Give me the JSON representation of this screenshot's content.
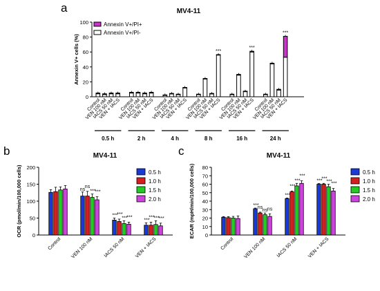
{
  "panels": {
    "a": {
      "letter": "a",
      "title": "MV4-11"
    },
    "b": {
      "letter": "b",
      "title": "MV4-11"
    },
    "c": {
      "letter": "c",
      "title": "MV4-11"
    }
  },
  "colors": {
    "magenta": "#cc33cc",
    "white": "#ffffff",
    "blue": "#1a3ad6",
    "red": "#d41f1f",
    "green": "#22cc22",
    "purple": "#cc44dd"
  },
  "chart_data": [
    {
      "id": "a",
      "type": "bar",
      "stacked": true,
      "title": "MV4-11",
      "ylabel": "Annexin V+ cells (%)",
      "ylim": [
        0,
        100
      ],
      "yticks": [
        0,
        20,
        40,
        60,
        80,
        100
      ],
      "legend_position": "top-left",
      "categories": [
        "Control",
        "VEN 100 nM",
        "IACS 50 nM",
        "VEN + IACS"
      ],
      "timepoints": [
        "0.5 h",
        "2 h",
        "4 h",
        "8 h",
        "16 h",
        "24 h"
      ],
      "series": [
        {
          "name": "Annexin V+/PI+",
          "color": "#cc33cc",
          "values": [
            [
              1,
              1,
              1,
              1
            ],
            [
              1,
              1,
              1,
              1
            ],
            [
              0.5,
              0.5,
              0.5,
              0.5
            ],
            [
              0.5,
              0.5,
              0.5,
              0.5
            ],
            [
              0.5,
              1,
              0.5,
              1
            ],
            [
              0.5,
              1,
              1,
              28
            ]
          ]
        },
        {
          "name": "Annexin V+/PI-",
          "color": "#ffffff",
          "values": [
            [
              4,
              3,
              4,
              4
            ],
            [
              5,
              5,
              4,
              5
            ],
            [
              2,
              4,
              3,
              12
            ],
            [
              3,
              24,
              4,
              56
            ],
            [
              3,
              29,
              7,
              60
            ],
            [
              3,
              44,
              9,
              53
            ]
          ]
        }
      ],
      "annotations": [
        [
          "8 h",
          3,
          "***"
        ],
        [
          "16 h",
          3,
          "***"
        ],
        [
          "24 h",
          3,
          "***"
        ]
      ]
    },
    {
      "id": "b",
      "type": "bar",
      "title": "MV4-11",
      "ylabel": "OCR (pmol/min/100,000 cells)",
      "ylim": [
        0,
        200
      ],
      "yticks": [
        0,
        50,
        100,
        150,
        200
      ],
      "legend_position": "top-right",
      "categories": [
        "Control",
        "VEN 100 nM",
        "IACS 50 nM",
        "VEN + IACS"
      ],
      "series": [
        {
          "name": "0.5 h",
          "color": "#1a3ad6",
          "values": [
            126,
            115,
            44,
            29
          ]
        },
        {
          "name": "1.0 h",
          "color": "#d41f1f",
          "values": [
            128,
            115,
            40,
            29
          ]
        },
        {
          "name": "1.5 h",
          "color": "#22cc22",
          "values": [
            133,
            111,
            34,
            31
          ]
        },
        {
          "name": "2.0 h",
          "color": "#cc44dd",
          "values": [
            136,
            104,
            32,
            27
          ]
        }
      ],
      "errors": [
        [
          8,
          13,
          9,
          10
        ],
        [
          12,
          14,
          10,
          9
        ],
        [
          6,
          7,
          8,
          6
        ],
        [
          7,
          9,
          11,
          8
        ]
      ],
      "annotations": [
        [
          "VEN 100 nM",
          [
            "ns",
            "ns",
            "***",
            "***"
          ]
        ],
        [
          "IACS 50 nM",
          [
            "***",
            "***",
            "***",
            "***"
          ]
        ],
        [
          "VEN + IACS",
          [
            "***",
            "***",
            "***",
            "***"
          ]
        ]
      ]
    },
    {
      "id": "c",
      "type": "bar",
      "title": "MV4-11",
      "ylabel": "ECAR (mpH/min/100,000 cells)",
      "ylim": [
        0,
        80
      ],
      "yticks": [
        0,
        10,
        20,
        30,
        40,
        50,
        60,
        70,
        80
      ],
      "legend_position": "top-right",
      "categories": [
        "Control",
        "VEN 100 nM",
        "IACS 50 nM",
        "VEN + IACS"
      ],
      "series": [
        {
          "name": "0.5 h",
          "color": "#1a3ad6",
          "values": [
            21,
            31,
            43,
            60
          ]
        },
        {
          "name": "1.0 h",
          "color": "#d41f1f",
          "values": [
            20.5,
            26,
            51,
            60
          ]
        },
        {
          "name": "1.5 h",
          "color": "#22cc22",
          "values": [
            20,
            24,
            58,
            57
          ]
        },
        {
          "name": "2.0 h",
          "color": "#cc44dd",
          "values": [
            19.5,
            22,
            61,
            52
          ]
        }
      ],
      "errors": [
        [
          0.8,
          1.2,
          2,
          3
        ],
        [
          0.8,
          1,
          2,
          3
        ],
        [
          0.8,
          1,
          3,
          3
        ],
        [
          0.8,
          1,
          3,
          3
        ]
      ],
      "annotations": [
        [
          "VEN 100 nM",
          [
            "***",
            "ns",
            "ns",
            "ns"
          ]
        ],
        [
          "IACS 50 nM",
          [
            "***",
            "***",
            "***",
            "***"
          ]
        ],
        [
          "VEN + IACS",
          [
            "***",
            "***",
            "***",
            "***"
          ]
        ]
      ]
    }
  ]
}
